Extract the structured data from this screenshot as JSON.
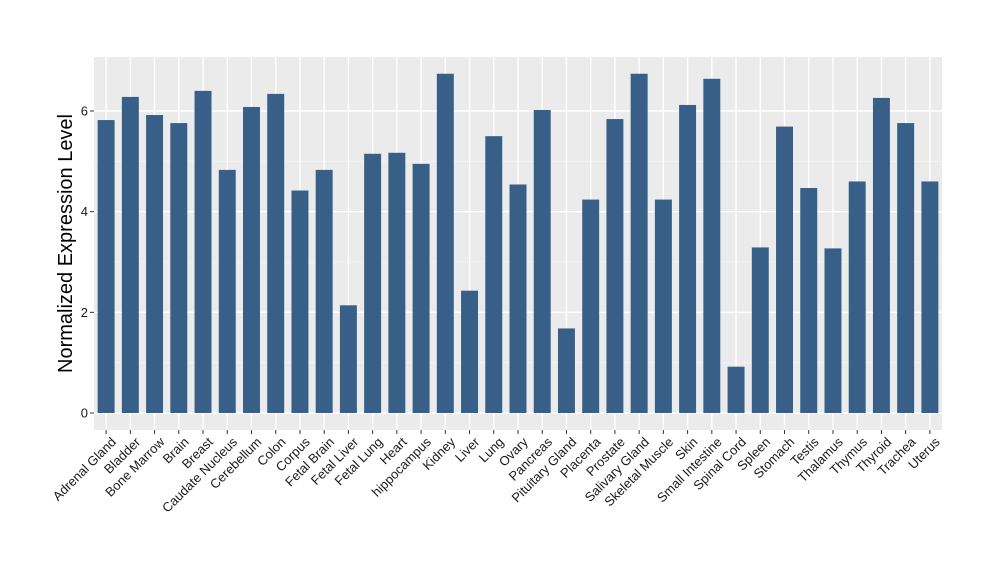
{
  "chart_data": {
    "type": "bar",
    "title": "",
    "xlabel": "",
    "ylabel": "Normalized Expression Level",
    "ylim": [
      -0.2,
      7.1
    ],
    "yticks": [
      0,
      2,
      4,
      6
    ],
    "grid": true,
    "legend": "none",
    "categories": [
      "Adrenal Gland",
      "Bladder",
      "Bone Marrow",
      "Brain",
      "Breast",
      "Caudate Nucleus",
      "Cerebellum",
      "Colon",
      "Corpus",
      "Fetal Brain",
      "Fetal Liver",
      "Fetal Lung",
      "Heart",
      "hippocampus",
      "Kidney",
      "Liver",
      "Lung",
      "Ovary",
      "Pancreas",
      "Pituitary Gland",
      "Placenta",
      "Prostate",
      "Salivary Gland",
      "Skeletal Muscle",
      "Skin",
      "Small Intestine",
      "Spinal Cord",
      "Spleen",
      "Stomach",
      "Testis",
      "Thalamus",
      "Thymus",
      "Thyroid",
      "Trachea",
      "Uterus"
    ],
    "values": [
      5.82,
      6.28,
      5.92,
      5.76,
      6.4,
      4.83,
      6.08,
      6.34,
      4.42,
      4.83,
      2.14,
      5.15,
      5.17,
      4.95,
      6.74,
      2.43,
      5.5,
      4.54,
      6.02,
      1.68,
      4.24,
      5.84,
      6.74,
      4.24,
      6.12,
      6.64,
      0.92,
      3.29,
      5.69,
      4.47,
      3.27,
      4.6,
      6.26,
      5.76,
      4.6
    ]
  },
  "colors": {
    "bar": "#375f88",
    "panel": "#ebebeb",
    "grid_major": "#ffffff",
    "grid_minor": "#f5f5f5",
    "tick": "#333333"
  }
}
